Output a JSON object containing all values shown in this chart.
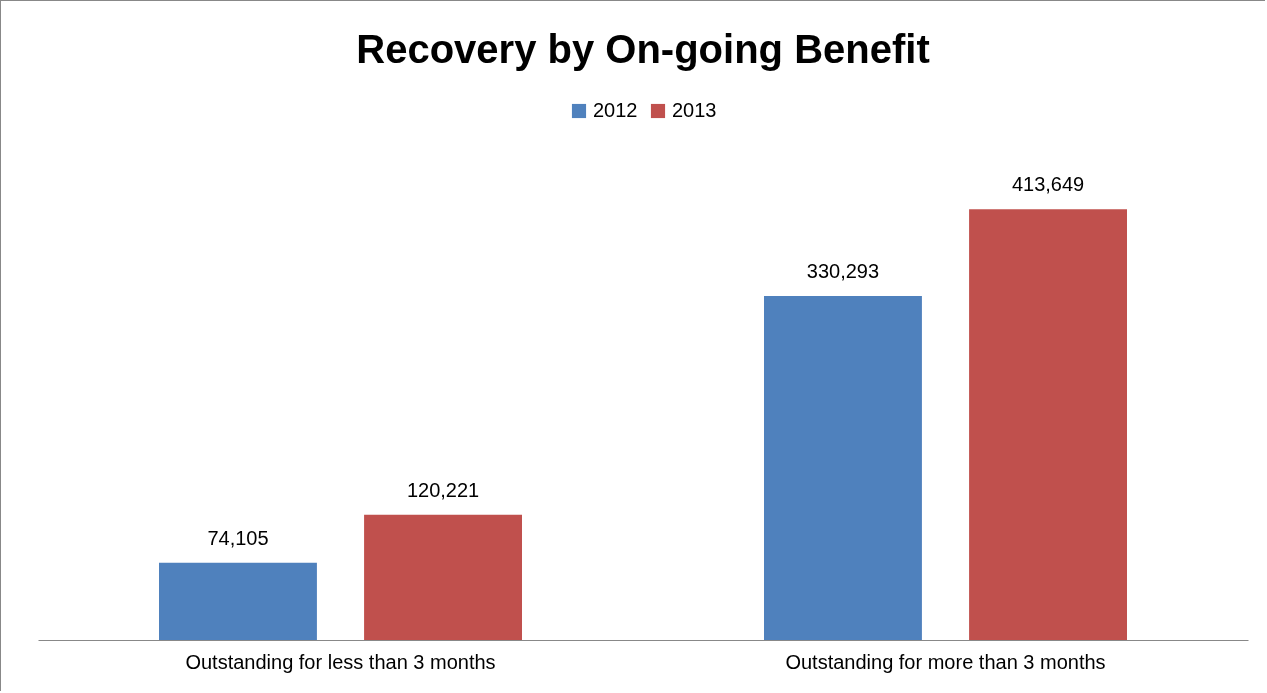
{
  "chart_data": {
    "type": "bar",
    "title": "Recovery by On-going Benefit",
    "categories": [
      "Outstanding for less than 3 months",
      "Outstanding for more than 3 months"
    ],
    "series": [
      {
        "name": "2012",
        "color": "#4f81bd",
        "values": [
          74105,
          330293
        ],
        "value_labels": [
          "74,105",
          "330,293"
        ]
      },
      {
        "name": "2013",
        "color": "#c0504d",
        "values": [
          120221,
          413649
        ],
        "value_labels": [
          "120,221",
          "413,649"
        ]
      }
    ],
    "legend": "top",
    "grid": false,
    "tick_labels": "x"
  }
}
